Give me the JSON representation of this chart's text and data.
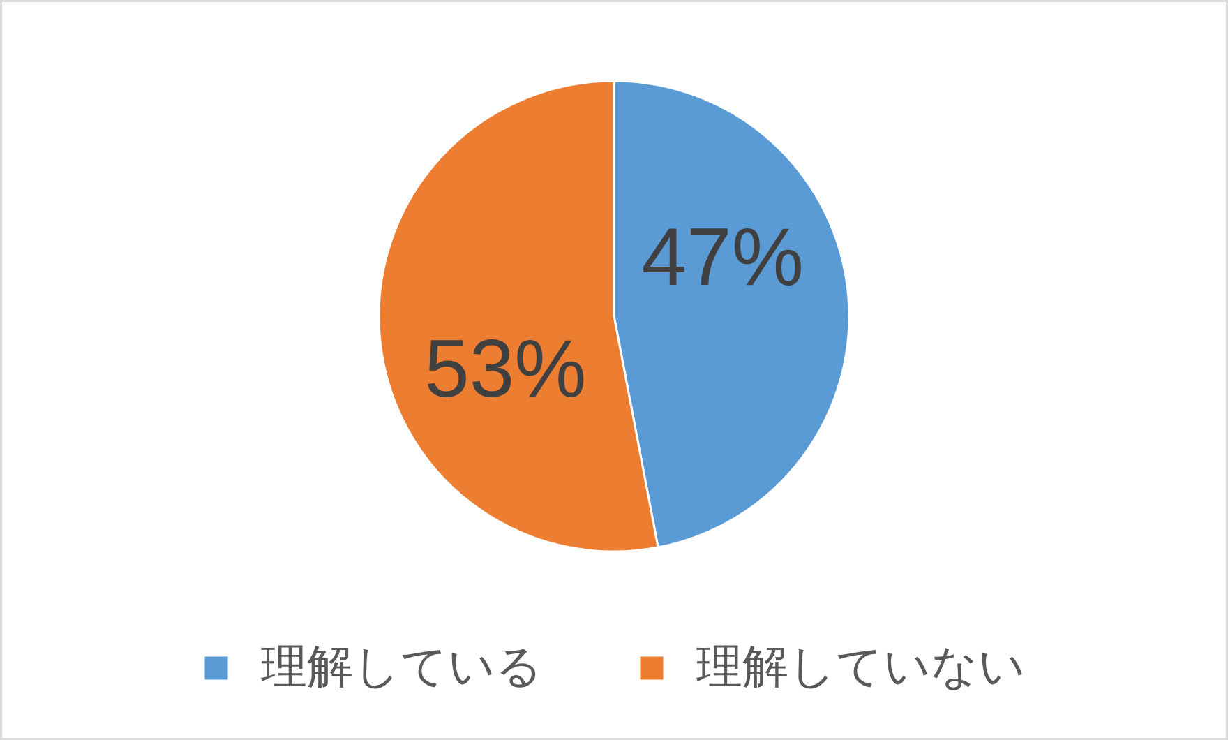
{
  "chart_data": {
    "type": "pie",
    "categories": [
      "理解している",
      "理解していない"
    ],
    "values": [
      47,
      53
    ],
    "colors": [
      "#5b9bd5",
      "#ed7d31"
    ],
    "value_labels": [
      "47%",
      "53%"
    ],
    "legend": "bottom"
  }
}
